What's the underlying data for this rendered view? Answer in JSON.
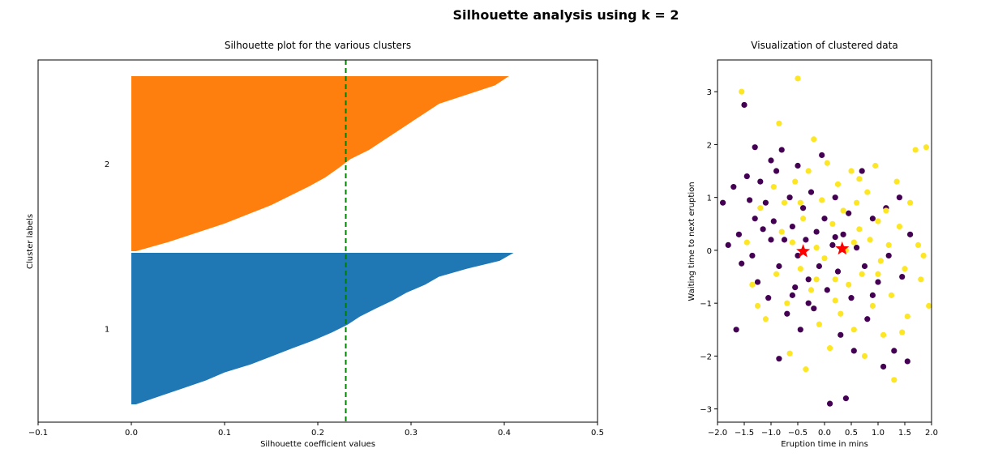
{
  "figure": {
    "suptitle": "Silhouette analysis using k = 2"
  },
  "chart_data": [
    {
      "type": "bar",
      "subtype": "silhouette",
      "title": "Silhouette plot for the various clusters",
      "xlabel": "Silhouette coefficient values",
      "ylabel": "Cluster labels",
      "xlim": [
        -0.1,
        0.5
      ],
      "xticks": [
        "−0.1",
        "0.0",
        "0.1",
        "0.2",
        "0.3",
        "0.4",
        "0.5"
      ],
      "average_silhouette": 0.23,
      "average_line_color": "#008000",
      "clusters": [
        {
          "label": "1",
          "color": "#1f77b4",
          "sorted_values_sample": [
            0.41,
            0.395,
            0.36,
            0.33,
            0.315,
            0.295,
            0.28,
            0.262,
            0.245,
            0.232,
            0.215,
            0.195,
            0.172,
            0.15,
            0.128,
            0.1,
            0.08,
            0.055,
            0.03,
            0.005
          ]
        },
        {
          "label": "2",
          "color": "#ff7f0e",
          "sorted_values_sample": [
            0.405,
            0.39,
            0.36,
            0.33,
            0.315,
            0.3,
            0.285,
            0.27,
            0.255,
            0.235,
            0.222,
            0.208,
            0.19,
            0.17,
            0.15,
            0.125,
            0.1,
            0.07,
            0.04,
            0.005
          ]
        }
      ]
    },
    {
      "type": "scatter",
      "title": "Visualization of clustered data",
      "xlabel": "Eruption time in mins",
      "ylabel": "Waiting time to next eruption",
      "xlim": [
        -2.0,
        2.0
      ],
      "ylim": [
        -3.25,
        3.6
      ],
      "xticks": [
        "−2.0",
        "−1.5",
        "−1.0",
        "−0.5",
        "0.0",
        "0.5",
        "1.0",
        "1.5",
        "2.0"
      ],
      "yticks": [
        "−3",
        "−2",
        "−1",
        "0",
        "1",
        "2",
        "3"
      ],
      "series": [
        {
          "color": "#440154",
          "points": [
            [
              -1.9,
              0.9
            ],
            [
              -1.8,
              0.1
            ],
            [
              -1.7,
              1.2
            ],
            [
              -1.6,
              0.3
            ],
            [
              -1.55,
              -0.25
            ],
            [
              -1.5,
              2.75
            ],
            [
              -1.45,
              1.4
            ],
            [
              -1.4,
              0.95
            ],
            [
              -1.35,
              -0.1
            ],
            [
              -1.3,
              1.95
            ],
            [
              -1.3,
              0.6
            ],
            [
              -1.25,
              -0.6
            ],
            [
              -1.2,
              1.3
            ],
            [
              -1.15,
              0.4
            ],
            [
              -1.1,
              0.9
            ],
            [
              -1.05,
              -0.9
            ],
            [
              -1.0,
              1.7
            ],
            [
              -0.95,
              0.55
            ],
            [
              -0.9,
              1.5
            ],
            [
              -0.85,
              -0.3
            ],
            [
              -0.8,
              1.9
            ],
            [
              -0.75,
              0.2
            ],
            [
              -0.7,
              -1.2
            ],
            [
              -0.65,
              1.0
            ],
            [
              -0.6,
              0.45
            ],
            [
              -0.55,
              -0.7
            ],
            [
              -0.5,
              1.6
            ],
            [
              -0.5,
              -0.1
            ],
            [
              -0.45,
              -1.5
            ],
            [
              -0.4,
              0.8
            ],
            [
              -0.35,
              0.2
            ],
            [
              -0.3,
              -0.55
            ],
            [
              -0.25,
              1.1
            ],
            [
              -0.2,
              -1.1
            ],
            [
              -0.15,
              0.35
            ],
            [
              -0.1,
              -0.3
            ],
            [
              -0.05,
              1.8
            ],
            [
              0.0,
              0.6
            ],
            [
              0.05,
              -0.75
            ],
            [
              0.1,
              -2.9
            ],
            [
              0.15,
              0.1
            ],
            [
              0.2,
              1.0
            ],
            [
              0.25,
              -0.4
            ],
            [
              0.3,
              -1.6
            ],
            [
              0.35,
              0.3
            ],
            [
              0.4,
              -2.8
            ],
            [
              0.45,
              0.7
            ],
            [
              0.5,
              -0.9
            ],
            [
              0.55,
              -1.9
            ],
            [
              0.6,
              0.05
            ],
            [
              0.7,
              1.5
            ],
            [
              0.75,
              -0.3
            ],
            [
              0.8,
              -1.3
            ],
            [
              0.9,
              0.6
            ],
            [
              1.0,
              -0.6
            ],
            [
              1.1,
              -2.2
            ],
            [
              1.15,
              0.8
            ],
            [
              1.2,
              -0.1
            ],
            [
              1.3,
              -1.9
            ],
            [
              1.4,
              1.0
            ],
            [
              1.45,
              -0.5
            ],
            [
              1.55,
              -2.1
            ],
            [
              -1.65,
              -1.5
            ],
            [
              -0.85,
              -2.05
            ],
            [
              -0.3,
              -1.0
            ],
            [
              0.9,
              -0.85
            ],
            [
              1.6,
              0.3
            ],
            [
              -1.0,
              0.2
            ],
            [
              0.2,
              0.25
            ],
            [
              -0.6,
              -0.85
            ]
          ]
        },
        {
          "color": "#fde725",
          "points": [
            [
              -1.55,
              3.0
            ],
            [
              -1.45,
              0.15
            ],
            [
              -1.35,
              -0.65
            ],
            [
              -1.2,
              0.8
            ],
            [
              -1.1,
              -1.3
            ],
            [
              -0.95,
              1.2
            ],
            [
              -0.9,
              -0.45
            ],
            [
              -0.85,
              2.4
            ],
            [
              -0.75,
              0.9
            ],
            [
              -0.7,
              -1.0
            ],
            [
              -0.65,
              -1.95
            ],
            [
              -0.6,
              0.15
            ],
            [
              -0.55,
              1.3
            ],
            [
              -0.5,
              3.25
            ],
            [
              -0.45,
              -0.35
            ],
            [
              -0.4,
              0.6
            ],
            [
              -0.35,
              -2.25
            ],
            [
              -0.3,
              1.5
            ],
            [
              -0.25,
              -0.75
            ],
            [
              -0.2,
              2.1
            ],
            [
              -0.15,
              0.05
            ],
            [
              -0.1,
              -1.4
            ],
            [
              -0.05,
              0.95
            ],
            [
              0.0,
              -0.15
            ],
            [
              0.05,
              1.65
            ],
            [
              0.1,
              -1.85
            ],
            [
              0.15,
              0.5
            ],
            [
              0.2,
              -0.55
            ],
            [
              0.25,
              1.25
            ],
            [
              0.3,
              -1.2
            ],
            [
              0.35,
              0.75
            ],
            [
              0.4,
              0.0
            ],
            [
              0.45,
              -0.65
            ],
            [
              0.5,
              1.5
            ],
            [
              0.55,
              -1.5
            ],
            [
              0.6,
              0.9
            ],
            [
              0.65,
              0.4
            ],
            [
              0.7,
              -0.45
            ],
            [
              0.75,
              -2.0
            ],
            [
              0.8,
              1.1
            ],
            [
              0.85,
              0.2
            ],
            [
              0.9,
              -1.05
            ],
            [
              0.95,
              1.6
            ],
            [
              1.0,
              0.55
            ],
            [
              1.05,
              -0.2
            ],
            [
              1.1,
              -1.6
            ],
            [
              1.15,
              0.75
            ],
            [
              1.2,
              0.1
            ],
            [
              1.25,
              -0.85
            ],
            [
              1.3,
              -2.45
            ],
            [
              1.35,
              1.3
            ],
            [
              1.4,
              0.45
            ],
            [
              1.5,
              -0.35
            ],
            [
              1.55,
              -1.25
            ],
            [
              1.6,
              0.9
            ],
            [
              1.7,
              1.9
            ],
            [
              1.75,
              0.1
            ],
            [
              1.8,
              -0.55
            ],
            [
              1.9,
              1.95
            ],
            [
              1.95,
              -1.05
            ],
            [
              -1.25,
              -1.05
            ],
            [
              -0.8,
              0.35
            ],
            [
              0.2,
              -0.95
            ],
            [
              1.45,
              -1.55
            ],
            [
              0.65,
              1.35
            ],
            [
              -0.15,
              -0.55
            ],
            [
              0.55,
              0.15
            ],
            [
              1.85,
              -0.1
            ],
            [
              -0.45,
              0.9
            ],
            [
              1.0,
              -0.45
            ]
          ]
        }
      ],
      "centroids": {
        "color": "#ff0000",
        "marker": "star",
        "points": [
          [
            -0.4,
            -0.02
          ],
          [
            0.33,
            0.03
          ]
        ]
      }
    }
  ]
}
